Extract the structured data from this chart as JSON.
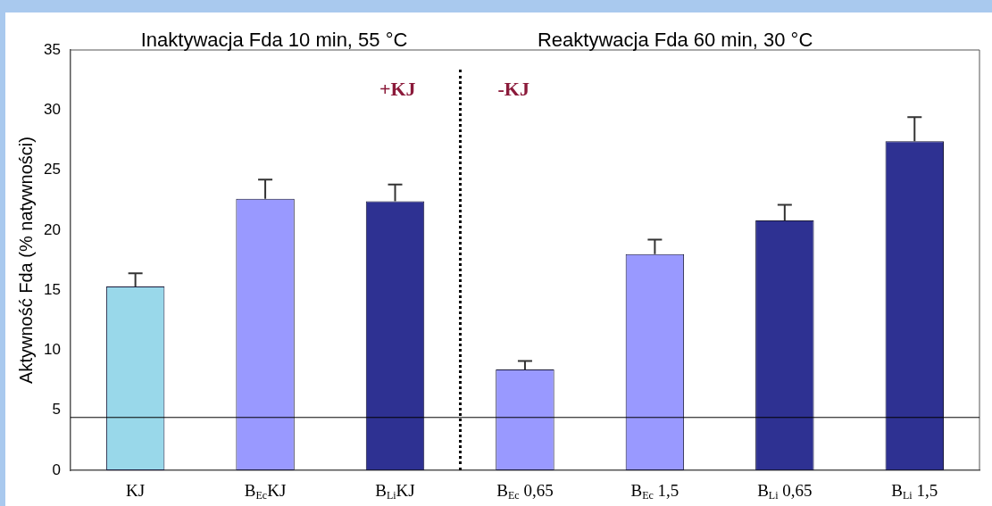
{
  "chart_data": {
    "type": "bar",
    "title": "Inaktywacja Fda 10 min, 55 °C",
    "subtitle": "Reaktywacja Fda 60 min, 30 °C",
    "ylabel": "Aktywność Fda (% natywności)",
    "categories": [
      "KJ",
      "B$_{Ec}$KJ",
      "B$_{Li}$KJ",
      "B$_{Ec}$ 0,65",
      "B$_{Ec}$ 1,5",
      "B$_{Li}$ 0,65",
      "B$_{Li}$ 1,5"
    ],
    "values": [
      15.3,
      22.6,
      22.4,
      8.4,
      18.0,
      20.8,
      27.4
    ],
    "colors": [
      "#99d8ea",
      "#9999ff",
      "#2e3192",
      "#9999ff",
      "#9999ff",
      "#2e3192",
      "#2e3192"
    ],
    "errors": [
      [
        15.3,
        16.4
      ],
      [
        22.6,
        24.2
      ],
      [
        22.4,
        23.8
      ],
      [
        8.4,
        9.1
      ],
      [
        18.0,
        19.2
      ],
      [
        20.8,
        22.1
      ],
      [
        27.4,
        29.4
      ]
    ],
    "ylim": [
      0,
      35
    ],
    "yticks": [
      0,
      5,
      10,
      15,
      20,
      25,
      30,
      35
    ],
    "ref_lines": [
      {
        "axis": "y",
        "value": 4.4,
        "color": "#000000"
      }
    ],
    "annotations": [
      "+KJ",
      "-KJ"
    ],
    "grid": false,
    "legend": false
  }
}
